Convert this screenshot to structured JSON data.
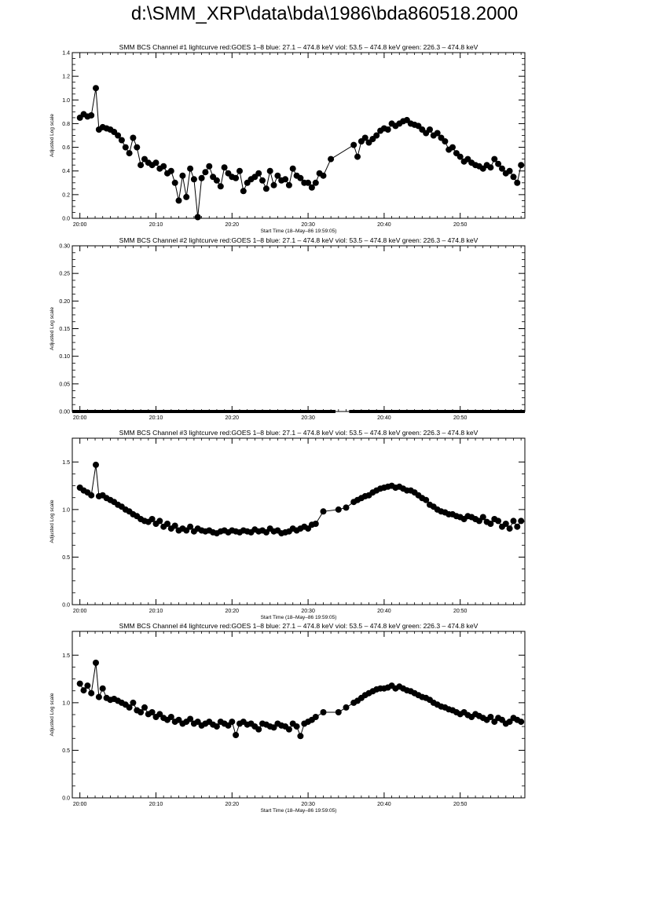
{
  "page": {
    "title": "d:\\SMM_XRP\\data\\bda\\1986\\bda860518.2000"
  },
  "chart_data": [
    {
      "type": "scatter",
      "title": "SMM BCS Channel #1 lightcurve  red:GOES 1–8  blue: 27.1 – 474.8 keV  viol: 53.5 – 474.8 keV  green: 226.3 – 474.8 keV",
      "xlabel": "Start Time (18–May–86 19:59:05)",
      "ylabel": "Adjusted Log scale",
      "xlim": [
        0,
        59.5
      ],
      "ylim": [
        0,
        1.4
      ],
      "xticks": [
        1,
        11,
        21,
        31,
        41,
        51
      ],
      "xticklabels": [
        "20:00",
        "20:10",
        "20:20",
        "20:30",
        "20:40",
        "20:50"
      ],
      "yticks": [
        0,
        0.2,
        0.4,
        0.6,
        0.8,
        1.0,
        1.2,
        1.4
      ],
      "yticklabels": [
        "0.0",
        "0.2",
        "0.4",
        "0.6",
        "0.8",
        "1.0",
        "1.2",
        "1.4"
      ],
      "series": [
        {
          "x": [
            1.0,
            1.5,
            2.0,
            2.5,
            3.1,
            3.5,
            4.0,
            4.5,
            5.0,
            5.5,
            6.0,
            6.5,
            7.0,
            7.5,
            8.0,
            8.5,
            9.0,
            9.5,
            10.0,
            10.5,
            11.0,
            11.5,
            12.0,
            12.5,
            13.0,
            13.5,
            14.0,
            14.5,
            15.0,
            15.5,
            16.0,
            16.5,
            17.0,
            17.5,
            18.0,
            18.5,
            19.0,
            19.5,
            20.0,
            20.5,
            21.0,
            21.5,
            22.0,
            22.5,
            23.0,
            23.5,
            24.0,
            24.5,
            25.0,
            25.5,
            26.0,
            26.5,
            27.0,
            27.5,
            28.0,
            28.5,
            29.0,
            29.5,
            30.0,
            30.5,
            31.0,
            31.5,
            32.0,
            32.5,
            33.0,
            34.0,
            37.0,
            37.5,
            38.0,
            38.5,
            39.0,
            39.5,
            40.0,
            40.5,
            41.0,
            41.5,
            42.0,
            42.5,
            43.0,
            43.5,
            44.0,
            44.5,
            45.0,
            45.5,
            46.0,
            46.5,
            47.0,
            47.5,
            48.0,
            48.5,
            49.0,
            49.5,
            50.0,
            50.5,
            51.0,
            51.5,
            52.0,
            52.5,
            53.0,
            53.5,
            54.0,
            54.5,
            55.0,
            55.5,
            56.0,
            56.5,
            57.0,
            57.5,
            58.0,
            58.5,
            59.0
          ],
          "values": [
            0.85,
            0.88,
            0.86,
            0.87,
            1.1,
            0.75,
            0.77,
            0.76,
            0.75,
            0.73,
            0.7,
            0.66,
            0.6,
            0.55,
            0.68,
            0.6,
            0.45,
            0.5,
            0.47,
            0.45,
            0.47,
            0.42,
            0.44,
            0.38,
            0.4,
            0.3,
            0.15,
            0.36,
            0.18,
            0.42,
            0.33,
            0.01,
            0.34,
            0.39,
            0.44,
            0.35,
            0.32,
            0.27,
            0.43,
            0.38,
            0.35,
            0.34,
            0.4,
            0.23,
            0.3,
            0.33,
            0.35,
            0.38,
            0.32,
            0.25,
            0.4,
            0.28,
            0.36,
            0.32,
            0.33,
            0.28,
            0.42,
            0.36,
            0.34,
            0.3,
            0.3,
            0.26,
            0.3,
            0.38,
            0.36,
            0.5,
            0.62,
            0.52,
            0.65,
            0.68,
            0.64,
            0.67,
            0.7,
            0.74,
            0.76,
            0.75,
            0.8,
            0.78,
            0.8,
            0.82,
            0.83,
            0.8,
            0.79,
            0.78,
            0.75,
            0.72,
            0.75,
            0.7,
            0.72,
            0.68,
            0.65,
            0.58,
            0.6,
            0.55,
            0.52,
            0.48,
            0.5,
            0.47,
            0.45,
            0.44,
            0.42,
            0.45,
            0.43,
            0.5,
            0.46,
            0.42,
            0.38,
            0.4,
            0.35,
            0.3,
            0.45
          ]
        }
      ]
    },
    {
      "type": "scatter",
      "title": "SMM BCS Channel #2 lightcurve  red:GOES 1–8  blue: 27.1 – 474.8 keV  viol: 53.5 – 474.8 keV  green: 226.3 – 474.8 keV",
      "xlabel": "",
      "ylabel": "Adjusted Log scale",
      "xlim": [
        0,
        59.5
      ],
      "ylim": [
        0,
        0.3
      ],
      "xticks": [
        1,
        11,
        21,
        31,
        41,
        51
      ],
      "xticklabels": [
        "20:00",
        "20:10",
        "20:20",
        "20:30",
        "20:40",
        "20:50"
      ],
      "yticks": [
        0,
        0.05,
        0.1,
        0.15,
        0.2,
        0.25,
        0.3
      ],
      "yticklabels": [
        "0.00",
        "0.05",
        "0.10",
        "0.15",
        "0.20",
        "0.25",
        "0.30"
      ],
      "series": [
        {
          "segments": [
            [
              0,
              34.6
            ],
            [
              36.4,
              59.5
            ]
          ],
          "value": 0.0
        }
      ]
    },
    {
      "type": "scatter",
      "title": "SMM BCS Channel #3 lightcurve  red:GOES 1–8  blue: 27.1 – 474.8 keV  viol: 53.5 – 474.8 keV  green: 226.3 – 474.8 keV",
      "xlabel": "Start Time (18–May–86 19:59:05)",
      "ylabel": "Adjusted Log scale",
      "xlim": [
        0,
        59.5
      ],
      "ylim": [
        0,
        1.75
      ],
      "xticks": [
        1,
        11,
        21,
        31,
        41,
        51
      ],
      "xticklabels": [
        "20:00",
        "20:10",
        "20:20",
        "20:30",
        "20:40",
        "20:50"
      ],
      "yticks": [
        0,
        0.5,
        1.0,
        1.5
      ],
      "yticklabels": [
        "0.0",
        "0.5",
        "1.0",
        "1.5"
      ],
      "series": [
        {
          "x": [
            1.0,
            1.5,
            2.0,
            2.5,
            3.1,
            3.5,
            4.0,
            4.5,
            5.0,
            5.5,
            6.0,
            6.5,
            7.0,
            7.5,
            8.0,
            8.5,
            9.0,
            9.5,
            10.0,
            10.5,
            11.0,
            11.5,
            12.0,
            12.5,
            13.0,
            13.5,
            14.0,
            14.5,
            15.0,
            15.5,
            16.0,
            16.5,
            17.0,
            17.5,
            18.0,
            18.5,
            19.0,
            19.5,
            20.0,
            20.5,
            21.0,
            21.5,
            22.0,
            22.5,
            23.0,
            23.5,
            24.0,
            24.5,
            25.0,
            25.5,
            26.0,
            26.5,
            27.0,
            27.5,
            28.0,
            28.5,
            29.0,
            29.5,
            30.0,
            30.5,
            31.0,
            31.5,
            32.0,
            33.0,
            35.0,
            36.0,
            37.0,
            37.5,
            38.0,
            38.5,
            39.0,
            39.5,
            40.0,
            40.5,
            41.0,
            41.5,
            42.0,
            42.5,
            43.0,
            43.5,
            44.0,
            44.5,
            45.0,
            45.5,
            46.0,
            46.5,
            47.0,
            47.5,
            48.0,
            48.5,
            49.0,
            49.5,
            50.0,
            50.5,
            51.0,
            51.5,
            52.0,
            52.5,
            53.0,
            53.5,
            54.0,
            54.5,
            55.0,
            55.5,
            56.0,
            56.5,
            57.0,
            57.5,
            58.0,
            58.5,
            59.0
          ],
          "values": [
            1.23,
            1.2,
            1.18,
            1.15,
            1.47,
            1.14,
            1.15,
            1.12,
            1.1,
            1.08,
            1.05,
            1.03,
            1.0,
            0.98,
            0.95,
            0.93,
            0.9,
            0.88,
            0.87,
            0.9,
            0.85,
            0.88,
            0.82,
            0.85,
            0.8,
            0.83,
            0.78,
            0.8,
            0.78,
            0.82,
            0.77,
            0.8,
            0.78,
            0.77,
            0.78,
            0.76,
            0.75,
            0.77,
            0.78,
            0.76,
            0.78,
            0.77,
            0.76,
            0.78,
            0.77,
            0.76,
            0.79,
            0.77,
            0.78,
            0.76,
            0.8,
            0.77,
            0.78,
            0.75,
            0.76,
            0.77,
            0.8,
            0.78,
            0.8,
            0.82,
            0.8,
            0.84,
            0.85,
            0.98,
            1.0,
            1.02,
            1.08,
            1.1,
            1.12,
            1.14,
            1.15,
            1.18,
            1.2,
            1.22,
            1.23,
            1.24,
            1.25,
            1.23,
            1.24,
            1.22,
            1.2,
            1.2,
            1.18,
            1.15,
            1.12,
            1.1,
            1.05,
            1.03,
            1.0,
            0.98,
            0.97,
            0.95,
            0.95,
            0.93,
            0.92,
            0.9,
            0.93,
            0.92,
            0.9,
            0.88,
            0.92,
            0.87,
            0.85,
            0.9,
            0.88,
            0.82,
            0.85,
            0.8,
            0.88,
            0.82,
            0.88
          ]
        }
      ]
    },
    {
      "type": "scatter",
      "title": "SMM BCS Channel #4 lightcurve  red:GOES 1–8  blue: 27.1 – 474.8 keV  viol: 53.5 – 474.8 keV  green: 226.3 – 474.8 keV",
      "xlabel": "Start Time (18–May–86 19:59:05)",
      "ylabel": "Adjusted Log scale",
      "xlim": [
        0,
        59.5
      ],
      "ylim": [
        0,
        1.75
      ],
      "xticks": [
        1,
        11,
        21,
        31,
        41,
        51
      ],
      "xticklabels": [
        "20:00",
        "20:10",
        "20:20",
        "20:30",
        "20:40",
        "20:50"
      ],
      "yticks": [
        0,
        0.5,
        1.0,
        1.5
      ],
      "yticklabels": [
        "0.0",
        "0.5",
        "1.0",
        "1.5"
      ],
      "series": [
        {
          "x": [
            1.0,
            1.5,
            2.0,
            2.5,
            3.1,
            3.5,
            4.0,
            4.5,
            5.0,
            5.5,
            6.0,
            6.5,
            7.0,
            7.5,
            8.0,
            8.5,
            9.0,
            9.5,
            10.0,
            10.5,
            11.0,
            11.5,
            12.0,
            12.5,
            13.0,
            13.5,
            14.0,
            14.5,
            15.0,
            15.5,
            16.0,
            16.5,
            17.0,
            17.5,
            18.0,
            18.5,
            19.0,
            19.5,
            20.0,
            20.5,
            21.0,
            21.5,
            22.0,
            22.5,
            23.0,
            23.5,
            24.0,
            24.5,
            25.0,
            25.5,
            26.0,
            26.5,
            27.0,
            27.5,
            28.0,
            28.5,
            29.0,
            29.5,
            30.0,
            30.5,
            31.0,
            31.5,
            32.0,
            33.0,
            35.0,
            36.0,
            37.0,
            37.5,
            38.0,
            38.5,
            39.0,
            39.5,
            40.0,
            40.5,
            41.0,
            41.5,
            42.0,
            42.5,
            43.0,
            43.5,
            44.0,
            44.5,
            45.0,
            45.5,
            46.0,
            46.5,
            47.0,
            47.5,
            48.0,
            48.5,
            49.0,
            49.5,
            50.0,
            50.5,
            51.0,
            51.5,
            52.0,
            52.5,
            53.0,
            53.5,
            54.0,
            54.5,
            55.0,
            55.5,
            56.0,
            56.5,
            57.0,
            57.5,
            58.0,
            58.5,
            59.0
          ],
          "values": [
            1.2,
            1.13,
            1.18,
            1.1,
            1.42,
            1.06,
            1.15,
            1.05,
            1.03,
            1.04,
            1.02,
            1.0,
            0.98,
            0.95,
            1.0,
            0.92,
            0.9,
            0.95,
            0.88,
            0.9,
            0.85,
            0.88,
            0.84,
            0.82,
            0.85,
            0.8,
            0.82,
            0.78,
            0.8,
            0.83,
            0.78,
            0.8,
            0.76,
            0.78,
            0.8,
            0.77,
            0.75,
            0.8,
            0.78,
            0.76,
            0.8,
            0.66,
            0.78,
            0.8,
            0.77,
            0.78,
            0.75,
            0.72,
            0.78,
            0.77,
            0.75,
            0.74,
            0.78,
            0.76,
            0.75,
            0.72,
            0.78,
            0.75,
            0.65,
            0.78,
            0.8,
            0.82,
            0.85,
            0.9,
            0.9,
            0.95,
            1.0,
            1.02,
            1.05,
            1.08,
            1.1,
            1.12,
            1.14,
            1.15,
            1.15,
            1.16,
            1.18,
            1.15,
            1.17,
            1.15,
            1.13,
            1.12,
            1.1,
            1.08,
            1.06,
            1.05,
            1.03,
            1.0,
            0.98,
            0.96,
            0.95,
            0.93,
            0.92,
            0.9,
            0.88,
            0.9,
            0.87,
            0.85,
            0.88,
            0.86,
            0.84,
            0.82,
            0.85,
            0.8,
            0.84,
            0.82,
            0.78,
            0.8,
            0.84,
            0.82,
            0.8
          ]
        }
      ]
    }
  ]
}
